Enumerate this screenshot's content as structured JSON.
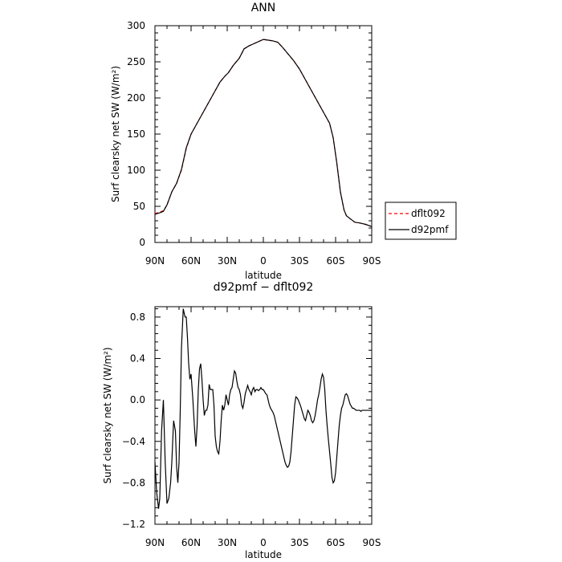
{
  "chart_data": [
    {
      "type": "line",
      "title": "ANN",
      "xlabel": "latitude",
      "ylabel": "Surf clearsky net SW (W/m²)",
      "xlim": [
        -90,
        90
      ],
      "ylim": [
        0,
        300
      ],
      "x_ticks": [
        -90,
        -60,
        -30,
        0,
        30,
        60,
        90
      ],
      "x_tick_labels": [
        "90N",
        "60N",
        "30N",
        "0",
        "30S",
        "60S",
        "90S"
      ],
      "y_ticks": [
        0,
        50,
        100,
        150,
        200,
        250,
        300
      ],
      "y_tick_labels": [
        "0",
        "50",
        "100",
        "150",
        "200",
        "250",
        "300"
      ],
      "legend": {
        "position": "right",
        "entries": [
          "dflt092",
          "d92pmf"
        ]
      },
      "series": [
        {
          "name": "dflt092",
          "color": "#ff0000",
          "dash": true,
          "x": [
            -90,
            -86,
            -83,
            -80,
            -76,
            -72,
            -68,
            -64,
            -60,
            -55,
            -50,
            -45,
            -40,
            -36,
            -32,
            -29,
            -25,
            -20,
            -16,
            -12,
            -8,
            -4,
            0,
            4,
            8,
            12,
            16,
            20,
            25,
            30,
            35,
            40,
            45,
            50,
            55,
            58,
            61,
            64,
            67,
            69,
            72,
            76,
            80,
            85,
            90
          ],
          "y": [
            40,
            42,
            44,
            52,
            70,
            82,
            100,
            130,
            150,
            165,
            180,
            195,
            210,
            222,
            230,
            235,
            245,
            255,
            268,
            272,
            275,
            278,
            281,
            280,
            279,
            277,
            270,
            262,
            252,
            240,
            225,
            210,
            195,
            180,
            165,
            145,
            110,
            70,
            45,
            37,
            33,
            28,
            27,
            25,
            22
          ]
        },
        {
          "name": "d92pmf",
          "color": "#000000",
          "dash": false,
          "x": [
            -90,
            -86,
            -83,
            -80,
            -76,
            -72,
            -68,
            -64,
            -60,
            -55,
            -50,
            -45,
            -40,
            -36,
            -32,
            -29,
            -25,
            -20,
            -16,
            -12,
            -8,
            -4,
            0,
            4,
            8,
            12,
            16,
            20,
            25,
            30,
            35,
            40,
            45,
            50,
            55,
            58,
            61,
            64,
            67,
            69,
            72,
            76,
            80,
            85,
            90
          ],
          "y": [
            39,
            41,
            43,
            52,
            70,
            82,
            101,
            131,
            150,
            165,
            180,
            195,
            210,
            222,
            230,
            235,
            245,
            255,
            268,
            272,
            275,
            278,
            281,
            280,
            279,
            277,
            270,
            262,
            252,
            240,
            225,
            210,
            195,
            180,
            165,
            145,
            110,
            70,
            45,
            37,
            33,
            28,
            27,
            25,
            22
          ]
        }
      ]
    },
    {
      "type": "line",
      "title": "d92pmf − dflt092",
      "xlabel": "latitude",
      "ylabel": "Surf clearsky net SW (W/m²)",
      "xlim": [
        -90,
        90
      ],
      "ylim": [
        -1.2,
        0.9
      ],
      "x_ticks": [
        -90,
        -60,
        -30,
        0,
        30,
        60,
        90
      ],
      "x_tick_labels": [
        "90N",
        "60N",
        "30N",
        "0",
        "30S",
        "60S",
        "90S"
      ],
      "y_ticks": [
        -1.2,
        -0.8,
        -0.4,
        0.0,
        0.4,
        0.8
      ],
      "y_tick_labels": [
        "−1.2",
        "−0.8",
        "−0.4",
        "0.0",
        "0.4",
        "0.8"
      ],
      "series": [
        {
          "name": "d92pmf − dflt092",
          "color": "#000000",
          "dash": false,
          "x": [
            -90,
            -88.5,
            -87,
            -86,
            -84.5,
            -83,
            -81.5,
            -80,
            -78.5,
            -77,
            -76,
            -74.5,
            -73,
            -72,
            -71,
            -70,
            -69,
            -68,
            -66.5,
            -65,
            -64,
            -63,
            -62,
            -61,
            -60,
            -58.5,
            -57,
            -56,
            -55,
            -54,
            -53,
            -52,
            -51,
            -50,
            -49,
            -48,
            -47,
            -46,
            -45,
            -44,
            -43,
            -42,
            -41,
            -40,
            -39,
            -38,
            -37,
            -36,
            -35,
            -34,
            -33,
            -32,
            -31,
            -30,
            -29,
            -28,
            -27,
            -26,
            -25,
            -24,
            -23,
            -22,
            -21,
            -20,
            -19,
            -18,
            -17,
            -16,
            -15,
            -14,
            -13,
            -12,
            -11,
            -10,
            -9,
            -8,
            -7,
            -6,
            -5,
            -4,
            -3,
            -2,
            -1,
            0,
            1,
            2,
            3,
            4,
            5,
            6,
            7,
            8,
            9,
            10,
            11,
            12,
            13,
            14,
            15,
            16,
            17,
            18,
            19,
            20,
            21,
            22,
            23,
            24,
            25,
            26,
            27,
            28,
            29,
            30,
            31,
            32,
            33,
            34,
            35,
            36,
            37,
            38,
            39,
            40,
            41,
            42,
            43,
            44,
            45,
            46,
            47,
            48,
            49,
            50,
            51,
            52,
            53,
            54,
            55,
            56,
            57,
            58,
            59,
            60,
            61,
            62,
            63,
            64,
            65,
            66,
            67,
            68,
            69,
            70,
            71,
            72,
            73,
            74,
            75,
            76,
            77,
            78,
            79,
            80,
            81,
            82,
            83,
            84,
            85,
            86,
            87,
            88,
            89,
            90
          ],
          "y": [
            -0.6,
            -0.9,
            -1.05,
            -0.95,
            -0.3,
            0.0,
            -0.6,
            -1.0,
            -0.95,
            -0.8,
            -0.6,
            -0.2,
            -0.3,
            -0.65,
            -0.8,
            -0.6,
            -0.1,
            0.5,
            0.88,
            0.8,
            0.8,
            0.6,
            0.35,
            0.2,
            0.25,
            0.0,
            -0.3,
            -0.45,
            -0.25,
            0.1,
            0.3,
            0.35,
            0.2,
            0.0,
            -0.15,
            -0.1,
            -0.1,
            -0.05,
            0.15,
            0.1,
            0.1,
            0.1,
            -0.05,
            -0.35,
            -0.45,
            -0.5,
            -0.52,
            -0.4,
            -0.2,
            -0.05,
            -0.1,
            -0.05,
            0.05,
            0.0,
            -0.05,
            0.05,
            0.1,
            0.12,
            0.2,
            0.28,
            0.26,
            0.18,
            0.12,
            0.1,
            0.05,
            -0.05,
            -0.08,
            -0.02,
            0.06,
            0.1,
            0.14,
            0.1,
            0.08,
            0.05,
            0.1,
            0.12,
            0.08,
            0.1,
            0.1,
            0.09,
            0.1,
            0.12,
            0.1,
            0.1,
            0.08,
            0.06,
            0.05,
            0.0,
            -0.05,
            -0.08,
            -0.1,
            -0.12,
            -0.15,
            -0.2,
            -0.25,
            -0.3,
            -0.35,
            -0.4,
            -0.45,
            -0.5,
            -0.55,
            -0.6,
            -0.63,
            -0.65,
            -0.64,
            -0.6,
            -0.5,
            -0.35,
            -0.2,
            -0.05,
            0.03,
            0.02,
            0.0,
            -0.03,
            -0.06,
            -0.1,
            -0.14,
            -0.18,
            -0.2,
            -0.15,
            -0.1,
            -0.12,
            -0.15,
            -0.2,
            -0.22,
            -0.2,
            -0.15,
            -0.08,
            0.0,
            0.05,
            0.12,
            0.2,
            0.25,
            0.22,
            0.1,
            -0.1,
            -0.25,
            -0.38,
            -0.5,
            -0.62,
            -0.75,
            -0.8,
            -0.78,
            -0.7,
            -0.55,
            -0.4,
            -0.25,
            -0.15,
            -0.08,
            -0.05,
            0.0,
            0.05,
            0.06,
            0.04,
            0.0,
            -0.04,
            -0.06,
            -0.08,
            -0.08,
            -0.09,
            -0.1,
            -0.1,
            -0.1,
            -0.1,
            -0.11,
            -0.1,
            -0.1,
            -0.1,
            -0.1,
            -0.1,
            -0.1,
            -0.1,
            -0.1,
            -0.1
          ]
        }
      ]
    }
  ]
}
